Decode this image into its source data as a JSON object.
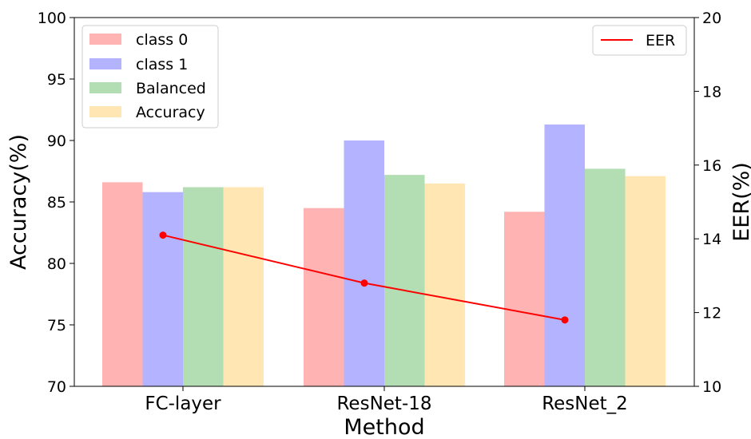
{
  "chart_data": {
    "type": "bar",
    "categories": [
      "FC-layer",
      "ResNet-18",
      "ResNet_2"
    ],
    "series": [
      {
        "name": "class 0",
        "color": "#ffb3b3",
        "values": [
          86.6,
          84.5,
          84.2
        ]
      },
      {
        "name": "class 1",
        "color": "#b3b3ff",
        "values": [
          85.8,
          90.0,
          91.3
        ]
      },
      {
        "name": "Balanced",
        "color": "#b3ddb3",
        "values": [
          86.2,
          87.2,
          87.7
        ]
      },
      {
        "name": "Accuracy",
        "color": "#ffe6b3",
        "values": [
          86.2,
          86.5,
          87.1
        ]
      }
    ],
    "line_series": {
      "name": "EER",
      "color": "#ff0000",
      "values": [
        14.1,
        12.8,
        11.8
      ]
    },
    "xlabel": "Method",
    "ylabel": "Accuracy(%)",
    "y2label": "EER(%)",
    "ylim": [
      70,
      100
    ],
    "y2lim": [
      10,
      20
    ],
    "yticks": [
      "70",
      "75",
      "80",
      "85",
      "90",
      "95",
      "100"
    ],
    "y2ticks": [
      "10",
      "12",
      "14",
      "16",
      "18",
      "20"
    ],
    "legend_bars_placement": "top-left",
    "legend_line_placement": "top-right",
    "grid": false
  }
}
